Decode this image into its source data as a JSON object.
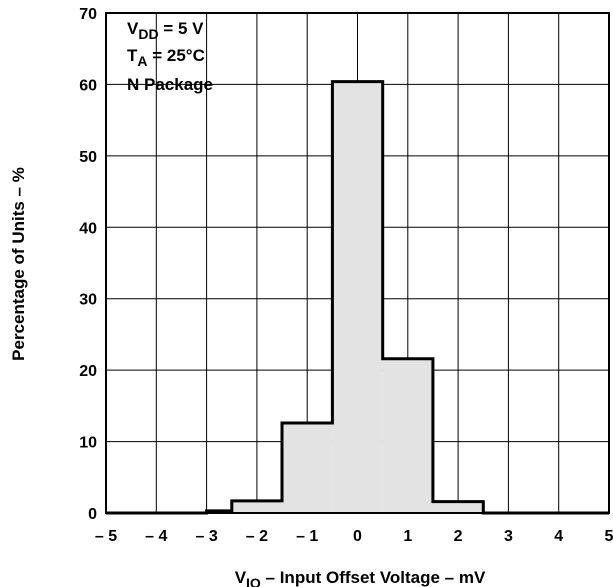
{
  "chart_data": {
    "type": "bar",
    "subtype": "histogram",
    "bin_edges": [
      -5,
      -4,
      -3,
      -2.5,
      -1.5,
      -0.5,
      0.5,
      1.5,
      2.5,
      3,
      4,
      5
    ],
    "values": [
      0,
      0,
      0.3,
      1.7,
      12.6,
      60.4,
      21.6,
      1.6,
      0,
      0,
      0
    ],
    "xlim": [
      -5,
      5
    ],
    "ylim": [
      0,
      70
    ],
    "x_ticks": [
      -5,
      -4,
      -3,
      -2,
      -1,
      0,
      1,
      2,
      3,
      4,
      5
    ],
    "x_tick_labels": [
      "– 5",
      "– 4",
      "– 3",
      "– 2",
      "– 1",
      "0",
      "1",
      "2",
      "3",
      "4",
      "5"
    ],
    "y_ticks": [
      0,
      10,
      20,
      30,
      40,
      50,
      60,
      70
    ],
    "y_tick_labels": [
      "0",
      "10",
      "20",
      "30",
      "40",
      "50",
      "60",
      "70"
    ],
    "grid": true,
    "bar_fill": "#e3e3e3",
    "bar_stroke": "#000000",
    "xlabel": {
      "main": "V",
      "sub": "IO",
      "rest": " – Input Offset Voltage – mV"
    },
    "ylabel": "Percentage of Units – %",
    "annotation": [
      {
        "main": "V",
        "sub": "DD",
        "rest": " = 5 V"
      },
      {
        "main": "T",
        "sub": "A",
        "rest": " = 25°C"
      },
      {
        "main": "N Package",
        "sub": "",
        "rest": ""
      }
    ],
    "annotation_position": "top-left"
  }
}
